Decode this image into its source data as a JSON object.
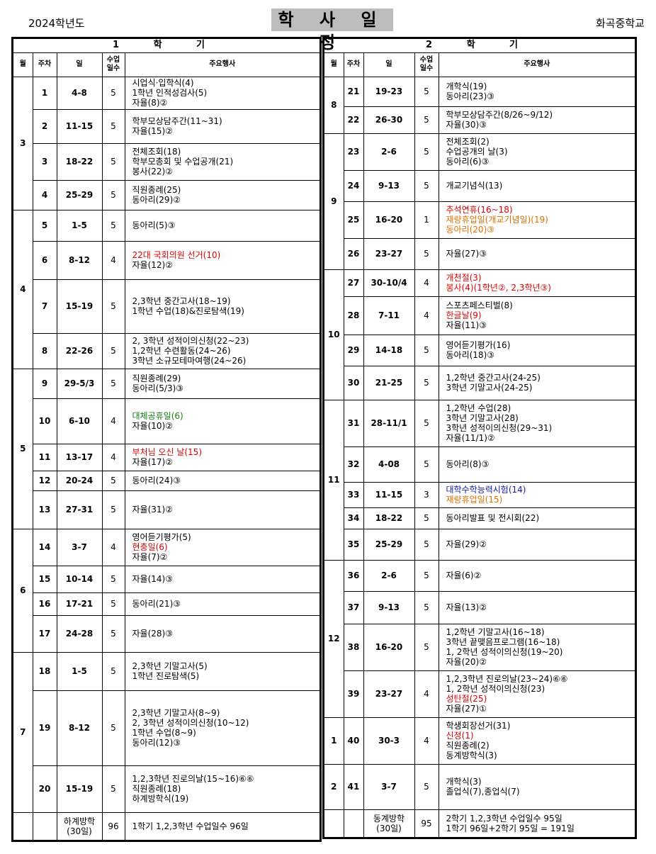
{
  "header": {
    "year": "2024학년도",
    "title": "학 사 일 정",
    "school": "화곡중학교"
  },
  "columns": {
    "month": "월",
    "week": "주차",
    "days": "일",
    "class_days": "수업일수",
    "events": "주요행사"
  },
  "semesters": [
    {
      "title": "1 학 기",
      "months": [
        {
          "month": "3",
          "rows": [
            {
              "week": "1",
              "days": "4-8",
              "n": "5",
              "h": 46,
              "events": [
                {
                  "text": "시업식·입학식(4)",
                  "color": "black"
                },
                {
                  "text": "1학년 인적성검사(5)",
                  "color": "black"
                },
                {
                  "text": "자율(8)②",
                  "color": "black"
                }
              ]
            },
            {
              "week": "2",
              "days": "11-15",
              "n": "5",
              "h": 48,
              "events": [
                {
                  "text": "학부모상담주간(11~31)",
                  "color": "black"
                },
                {
                  "text": "자율(15)②",
                  "color": "black"
                }
              ]
            },
            {
              "week": "3",
              "days": "18-22",
              "n": "5",
              "h": 52,
              "events": [
                {
                  "text": "전체조회(18)",
                  "color": "black"
                },
                {
                  "text": "학부모총회 및 수업공개(21)",
                  "color": "black"
                },
                {
                  "text": "봉사(22)②",
                  "color": "black"
                }
              ]
            },
            {
              "week": "4",
              "days": "25-29",
              "n": "5",
              "h": 42,
              "events": [
                {
                  "text": "직원종례(25)",
                  "color": "black"
                },
                {
                  "text": "동아리(29)②",
                  "color": "black"
                }
              ]
            }
          ]
        },
        {
          "month": "4",
          "rows": [
            {
              "week": "5",
              "days": "1-5",
              "n": "5",
              "h": 44,
              "events": [
                {
                  "text": "동아리(5)③",
                  "color": "black"
                }
              ]
            },
            {
              "week": "6",
              "days": "8-12",
              "n": "4",
              "h": 54,
              "events": [
                {
                  "text": "22대 국회의원 선거(10)",
                  "color": "red"
                },
                {
                  "text": "자율(12)②",
                  "color": "black"
                }
              ]
            },
            {
              "week": "7",
              "days": "15-19",
              "n": "5",
              "h": 76,
              "events": [
                {
                  "text": "2,3학년 중간고사(18~19)",
                  "color": "black"
                },
                {
                  "text": "1학년 수업(18)&진로탐색(19)",
                  "color": "black"
                }
              ]
            },
            {
              "week": "8",
              "days": "22-26",
              "n": "5",
              "h": 50,
              "events": [
                {
                  "text": "2, 3학년 성적이의신청(22~23)",
                  "color": "black"
                },
                {
                  "text": "1,2학년 수련활동(24~26)",
                  "color": "black"
                },
                {
                  "text": "3학년 소규모테마여행(24~26)",
                  "color": "black"
                }
              ]
            }
          ]
        },
        {
          "month": "5",
          "rows": [
            {
              "week": "9",
              "days": "29-5/3",
              "n": "5",
              "h": 42,
              "events": [
                {
                  "text": "직원종례(29)",
                  "color": "black"
                },
                {
                  "text": "동아리(5/3)③",
                  "color": "black"
                }
              ]
            },
            {
              "week": "10",
              "days": "6-10",
              "n": "4",
              "h": 64,
              "events": [
                {
                  "text": "대체공휴일(6)",
                  "color": "green"
                },
                {
                  "text": "자율(10)②",
                  "color": "black"
                }
              ]
            },
            {
              "week": "11",
              "days": "13-17",
              "n": "4",
              "h": 38,
              "events": [
                {
                  "text": "부처님 오신 날(15)",
                  "color": "red"
                },
                {
                  "text": "자율(17)②",
                  "color": "black"
                }
              ]
            },
            {
              "week": "12",
              "days": "20-24",
              "n": "5",
              "h": 28,
              "events": [
                {
                  "text": "동아리(24)③",
                  "color": "black"
                }
              ]
            },
            {
              "week": "13",
              "days": "27-31",
              "n": "5",
              "h": 54,
              "events": [
                {
                  "text": "자율(31)②",
                  "color": "black"
                }
              ]
            }
          ]
        },
        {
          "month": "6",
          "rows": [
            {
              "week": "14",
              "days": "3-7",
              "n": "4",
              "h": 52,
              "events": [
                {
                  "text": "영어듣기평가(5)",
                  "color": "black"
                },
                {
                  "text": "현충일(6)",
                  "color": "red"
                },
                {
                  "text": "자율(7)②",
                  "color": "black"
                }
              ]
            },
            {
              "week": "15",
              "days": "10-14",
              "n": "5",
              "h": 38,
              "events": [
                {
                  "text": "자율(14)③",
                  "color": "black"
                }
              ]
            },
            {
              "week": "16",
              "days": "17-21",
              "n": "5",
              "h": 32,
              "events": [
                {
                  "text": "동아리(21)③",
                  "color": "black"
                }
              ]
            },
            {
              "week": "17",
              "days": "24-28",
              "n": "5",
              "h": 52,
              "events": [
                {
                  "text": "자율(28)③",
                  "color": "black"
                }
              ]
            }
          ]
        },
        {
          "month": "7",
          "rows": [
            {
              "week": "18",
              "days": "1-5",
              "n": "5",
              "h": 54,
              "events": [
                {
                  "text": "2,3학년 기말고사(5)",
                  "color": "black"
                },
                {
                  "text": "1학년 진로탐색(5)",
                  "color": "black"
                }
              ]
            },
            {
              "week": "19",
              "days": "8-12",
              "n": "5",
              "h": 106,
              "events": [
                {
                  "text": "2,3학년 기말고사(8~9)",
                  "color": "black"
                },
                {
                  "text": "2, 3학년 성적이의신청(10~12)",
                  "color": "black"
                },
                {
                  "text": "1학년 수업(8~9)",
                  "color": "black"
                },
                {
                  "text": "동아리(12)③",
                  "color": "black"
                }
              ]
            },
            {
              "week": "20",
              "days": "15-19",
              "n": "5",
              "h": 66,
              "events": [
                {
                  "text": "1,2,3학년 진로의날(15~16)⑥⑥",
                  "color": "black"
                },
                {
                  "text": "직원종례(18)",
                  "color": "black"
                },
                {
                  "text": "하계방학식(19)",
                  "color": "black"
                }
              ]
            }
          ]
        }
      ],
      "footer": {
        "label": "하계방학\n(30일)",
        "n": "96",
        "text": "1학기 1,2,3학년 수업일수 96일",
        "h": 40
      }
    },
    {
      "title": "2 학 기",
      "months": [
        {
          "month": "8",
          "rows": [
            {
              "week": "21",
              "days": "19-23",
              "n": "5",
              "h": 42,
              "events": [
                {
                  "text": "개학식(19)",
                  "color": "black"
                },
                {
                  "text": "동아리(23)③",
                  "color": "black"
                }
              ]
            },
            {
              "week": "22",
              "days": "26-30",
              "n": "5",
              "h": 38,
              "events": [
                {
                  "text": "학부모상담주간(8/26~9/12)",
                  "color": "black"
                },
                {
                  "text": "자율(30)③",
                  "color": "black"
                }
              ]
            }
          ]
        },
        {
          "month": "9",
          "rows": [
            {
              "week": "23",
              "days": "2-6",
              "n": "5",
              "h": 52,
              "events": [
                {
                  "text": "전체조회(2)",
                  "color": "black"
                },
                {
                  "text": "수업공개의 날(3)",
                  "color": "black"
                },
                {
                  "text": "동아리(6)③",
                  "color": "black"
                }
              ]
            },
            {
              "week": "24",
              "days": "9-13",
              "n": "5",
              "h": 44,
              "events": [
                {
                  "text": "개교기념식(13)",
                  "color": "black"
                }
              ]
            },
            {
              "week": "25",
              "days": "16-20",
              "n": "1",
              "h": 52,
              "events": [
                {
                  "text": "추석연휴(16~18)",
                  "color": "red"
                },
                {
                  "text": "재량휴업일(개교기념일)(19)",
                  "color": "orange"
                },
                {
                  "text": "동아리(20)③",
                  "color": "orange"
                }
              ]
            },
            {
              "week": "26",
              "days": "23-27",
              "n": "5",
              "h": 44,
              "events": [
                {
                  "text": "자율(27)③",
                  "color": "black"
                }
              ]
            }
          ]
        },
        {
          "month": "10",
          "rows": [
            {
              "week": "27",
              "days": "30-10/4",
              "n": "4",
              "h": 38,
              "events": [
                {
                  "text": "개천절(3)",
                  "color": "red"
                },
                {
                  "text": "봉사(4)(1학년②, 2,3학년③)",
                  "color": "red"
                }
              ]
            },
            {
              "week": "28",
              "days": "7-11",
              "n": "4",
              "h": 54,
              "events": [
                {
                  "text": "스포츠페스티벌(8)",
                  "color": "black"
                },
                {
                  "text": "한글날(9)",
                  "color": "red"
                },
                {
                  "text": "자율(11)③",
                  "color": "black"
                }
              ]
            },
            {
              "week": "29",
              "days": "14-18",
              "n": "5",
              "h": 44,
              "events": [
                {
                  "text": "영어듣기평가(16)",
                  "color": "black"
                },
                {
                  "text": "동아리(18)③",
                  "color": "black"
                }
              ]
            },
            {
              "week": "30",
              "days": "21-25",
              "n": "5",
              "h": 48,
              "events": [
                {
                  "text": "1,2학년 중간고사(24-25)",
                  "color": "black"
                },
                {
                  "text": "3학년 기말고사(24-25)",
                  "color": "black"
                }
              ]
            }
          ]
        },
        {
          "month": "11",
          "rows": [
            {
              "week": "31",
              "days": "28-11/1",
              "n": "5",
              "h": 66,
              "events": [
                {
                  "text": "1,2학년 수업(28)",
                  "color": "black"
                },
                {
                  "text": "3학년 기말고사(28)",
                  "color": "black"
                },
                {
                  "text": "3학년 성적이의신청(29~31)",
                  "color": "black"
                },
                {
                  "text": "자율(11/1)②",
                  "color": "black"
                }
              ]
            },
            {
              "week": "32",
              "days": "4-08",
              "n": "5",
              "h": 50,
              "events": [
                {
                  "text": "동아리(8)③",
                  "color": "black"
                }
              ]
            },
            {
              "week": "33",
              "days": "11-15",
              "n": "3",
              "h": 36,
              "events": [
                {
                  "text": "대학수학능력시험(14)",
                  "color": "blue"
                },
                {
                  "text": "재량휴업일(15)",
                  "color": "orange"
                }
              ]
            },
            {
              "week": "34",
              "days": "18-22",
              "n": "5",
              "h": 30,
              "events": [
                {
                  "text": "동아리발표 및 전시회(22)",
                  "color": "black"
                }
              ]
            },
            {
              "week": "35",
              "days": "25-29",
              "n": "5",
              "h": 44,
              "events": [
                {
                  "text": "자율(29)②",
                  "color": "black"
                }
              ]
            }
          ]
        },
        {
          "month": "12",
          "rows": [
            {
              "week": "36",
              "days": "2-6",
              "n": "5",
              "h": 44,
              "events": [
                {
                  "text": "자율(6)②",
                  "color": "black"
                }
              ]
            },
            {
              "week": "37",
              "days": "9-13",
              "n": "5",
              "h": 46,
              "events": [
                {
                  "text": "자율(13)②",
                  "color": "black"
                }
              ]
            },
            {
              "week": "38",
              "days": "16-20",
              "n": "5",
              "h": 66,
              "events": [
                {
                  "text": "1,2학년 기말고사(16~18)",
                  "color": "black"
                },
                {
                  "text": "3학년 끝맺음프로그램(16~18)",
                  "color": "black"
                },
                {
                  "text": "1, 2학년 성적이의신청(19~20)",
                  "color": "black"
                },
                {
                  "text": "자율(20)②",
                  "color": "black"
                }
              ]
            },
            {
              "week": "39",
              "days": "23-27",
              "n": "4",
              "h": 66,
              "events": [
                {
                  "text": "1,2,3학년 진로의날(23~24)⑥⑥",
                  "color": "black"
                },
                {
                  "text": "1, 2학년 성적이의신청(23)",
                  "color": "black"
                },
                {
                  "text": "성탄절(25)",
                  "color": "red"
                },
                {
                  "text": "자율(27)①",
                  "color": "black"
                }
              ]
            }
          ]
        },
        {
          "month": "1",
          "rows": [
            {
              "week": "40",
              "days": "30-3",
              "n": "4",
              "h": 66,
              "events": [
                {
                  "text": "학생회장선거(31)",
                  "color": "black"
                },
                {
                  "text": "신정(1)",
                  "color": "red"
                },
                {
                  "text": "직원종례(2)",
                  "color": "black"
                },
                {
                  "text": "동계방학식(3)",
                  "color": "black"
                }
              ]
            }
          ]
        },
        {
          "month": "2",
          "rows": [
            {
              "week": "41",
              "days": "3-7",
              "n": "5",
              "h": 64,
              "events": [
                {
                  "text": "개학식(3)",
                  "color": "black"
                },
                {
                  "text": "졸업식(7),종업식(7)",
                  "color": "black"
                }
              ]
            }
          ]
        }
      ],
      "footer": {
        "label": "동계방학\n(30일)",
        "n": "95",
        "text": "2학기 1,2,3학년 수업일수 95일\n1학기 96일+2학기 95일 = 191일",
        "h": 40
      }
    }
  ]
}
